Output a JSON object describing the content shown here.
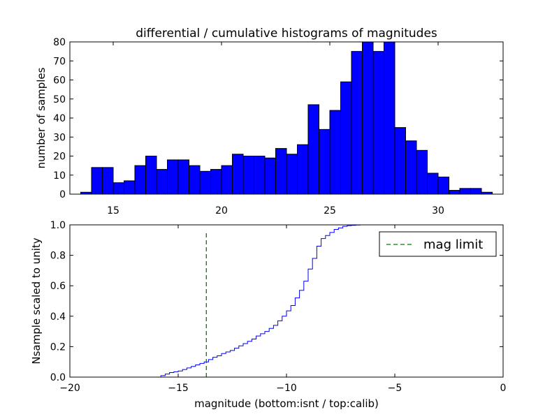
{
  "chart_data": [
    {
      "type": "bar",
      "title": "differential / cumulative histograms of magnitudes",
      "xlabel": "",
      "ylabel": "number of samples",
      "xlim": [
        13.0,
        33.0
      ],
      "ylim": [
        0,
        80
      ],
      "xticks": [
        15,
        20,
        25,
        30
      ],
      "yticks": [
        0,
        10,
        20,
        30,
        40,
        50,
        60,
        70,
        80
      ],
      "bin_start": 13.5,
      "bin_width": 0.5,
      "values": [
        1,
        14,
        14,
        6,
        7,
        15,
        20,
        13,
        18,
        18,
        15,
        12,
        13,
        15,
        21,
        20,
        20,
        19,
        24,
        21,
        26,
        47,
        34,
        44,
        59,
        75,
        80,
        75,
        80,
        35,
        28,
        23,
        11,
        9,
        2,
        3,
        3,
        1
      ],
      "bar_color": "#0000ff",
      "grid": false
    },
    {
      "type": "line",
      "style": "step",
      "title": "",
      "xlabel": "magnitude (bottom:isnt / top:calib)",
      "ylabel": "Nsample scaled to unity",
      "xlim": [
        -20,
        0
      ],
      "ylim": [
        0.0,
        1.0
      ],
      "xticks": [
        -20,
        -15,
        -10,
        -5,
        0
      ],
      "xtick_labels": [
        "−20",
        "−15",
        "−10",
        "−5",
        "0"
      ],
      "yticks": [
        0.0,
        0.2,
        0.4,
        0.6,
        0.8,
        1.0
      ],
      "ytick_labels": [
        "0.0",
        "0.2",
        "0.4",
        "0.6",
        "0.8",
        "1.0"
      ],
      "series": [
        {
          "color": "#0000ff",
          "x": [
            -20.0,
            -15.8,
            -15.6,
            -15.4,
            -15.2,
            -15.0,
            -14.8,
            -14.6,
            -14.4,
            -14.2,
            -14.0,
            -13.8,
            -13.6,
            -13.4,
            -13.2,
            -13.0,
            -12.8,
            -12.6,
            -12.4,
            -12.2,
            -12.0,
            -11.8,
            -11.6,
            -11.4,
            -11.2,
            -11.0,
            -10.8,
            -10.6,
            -10.4,
            -10.2,
            -10.0,
            -9.8,
            -9.6,
            -9.4,
            -9.2,
            -9.0,
            -8.8,
            -8.6,
            -8.4,
            -8.2,
            -8.0,
            -7.8,
            -7.6,
            -7.4,
            -7.2,
            -7.0,
            -6.8,
            -6.6,
            0.0
          ],
          "y": [
            0.0,
            0.01,
            0.02,
            0.03,
            0.035,
            0.04,
            0.05,
            0.06,
            0.07,
            0.08,
            0.09,
            0.1,
            0.115,
            0.13,
            0.14,
            0.155,
            0.165,
            0.175,
            0.19,
            0.205,
            0.22,
            0.235,
            0.25,
            0.27,
            0.285,
            0.3,
            0.32,
            0.34,
            0.37,
            0.4,
            0.435,
            0.47,
            0.52,
            0.57,
            0.63,
            0.71,
            0.78,
            0.86,
            0.91,
            0.93,
            0.95,
            0.97,
            0.98,
            0.99,
            0.995,
            0.997,
            0.999,
            1.0,
            1.0
          ]
        },
        {
          "name": "mag limit",
          "color": "#008000",
          "style": "dashed",
          "x": [
            -13.7,
            -13.7
          ],
          "y": [
            0.0,
            0.95
          ]
        }
      ],
      "legend": {
        "entries": [
          "mag limit"
        ],
        "placement": "top-right"
      },
      "grid": false
    }
  ]
}
